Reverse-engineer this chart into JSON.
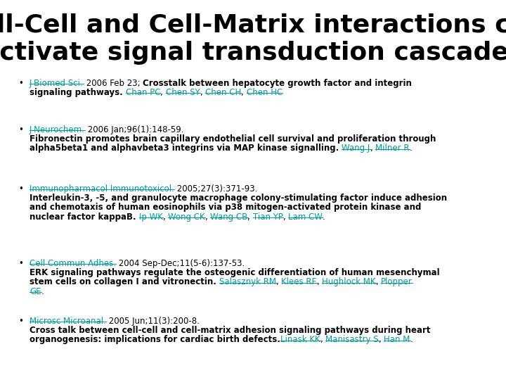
{
  "background_color": "#ffffff",
  "title_line1": "Cell-Cell and Cell-Matrix interactions can",
  "title_line2": "activate signal transduction cascades",
  "title_color": "#1a1a1a",
  "title_fontsize": 26,
  "teal_color": "#009999",
  "black_color": "#000000",
  "bullet_fontsize": 8.5,
  "fig_width": 7.2,
  "fig_height": 5.4,
  "fig_dpi": 100
}
